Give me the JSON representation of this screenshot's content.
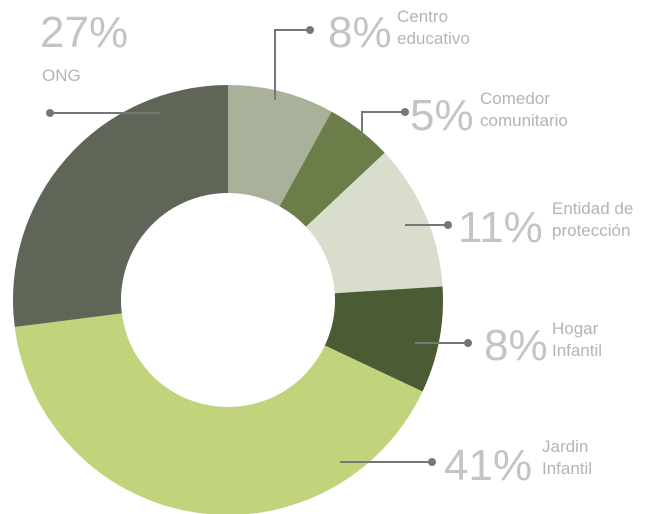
{
  "chart_data": {
    "type": "donut",
    "categories": [
      "Centro educativo",
      "Comedor comunitario",
      "Entidad de protección",
      "Hogar Infantil",
      "Jardin Infantil",
      "ONG"
    ],
    "values": [
      8,
      5,
      11,
      8,
      41,
      27
    ],
    "value_labels": [
      "8%",
      "5%",
      "11%",
      "8%",
      "41%",
      "27%"
    ],
    "colors": [
      "#a9b19b",
      "#6b7d49",
      "#d9ddcc",
      "#4b5b33",
      "#c1d47c",
      "#5f6658"
    ]
  }
}
